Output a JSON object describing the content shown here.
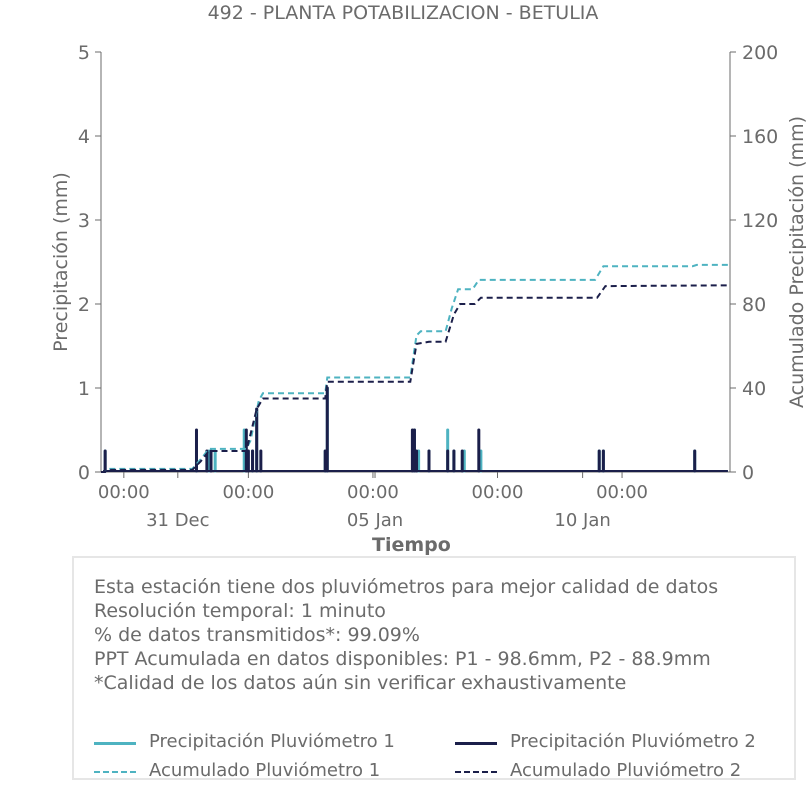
{
  "chart_data": {
    "type": "line",
    "title": "492 - PLANTA POTABILIZACION - BETULIA",
    "xlabel": "Tiempo",
    "ylabel": "Precipitación (mm)",
    "ylabel_right": "Acumulado Precipitación (mm)",
    "ylim": [
      0,
      5
    ],
    "ylim_right": [
      0,
      200
    ],
    "yticks": [
      "0",
      "1",
      "2",
      "3",
      "4",
      "5"
    ],
    "yticks_right": [
      "0",
      "40",
      "80",
      "120",
      "160",
      "200"
    ],
    "xlim_days": [
      -3.55,
      11.6
    ],
    "xticks_major": [
      {
        "day": -3,
        "label": "00:00"
      },
      {
        "day": 0,
        "label": "00:00"
      },
      {
        "day": 3,
        "label": "00:00"
      },
      {
        "day": 6,
        "label": "00:00"
      },
      {
        "day": 9,
        "label": "00:00"
      }
    ],
    "xticks_date": [
      {
        "day": -1.7,
        "label": "31 Dec"
      },
      {
        "day": 3.05,
        "label": "05 Jan"
      },
      {
        "day": 8.05,
        "label": "10 Jan"
      }
    ],
    "grid": false,
    "series": [
      {
        "name": "Precipitación Pluviómetro 1",
        "color": "#4eb3c1",
        "style": "solid",
        "axis": "left",
        "bars": [
          {
            "day": -3.45,
            "value": 0.25
          },
          {
            "day": -1.25,
            "value": 0.25
          },
          {
            "day": -0.95,
            "value": 0.25
          },
          {
            "day": -0.8,
            "value": 0.25
          },
          {
            "day": -0.1,
            "value": 0.5
          },
          {
            "day": 0.1,
            "value": 0.25
          },
          {
            "day": 0.2,
            "value": 0.75
          },
          {
            "day": 1.85,
            "value": 0.25
          },
          {
            "day": 1.9,
            "value": 1.0
          },
          {
            "day": 4.0,
            "value": 0.5
          },
          {
            "day": 4.1,
            "value": 0.25
          },
          {
            "day": 4.35,
            "value": 0.25
          },
          {
            "day": 4.8,
            "value": 0.5
          },
          {
            "day": 4.95,
            "value": 0.25
          },
          {
            "day": 5.2,
            "value": 0.25
          },
          {
            "day": 5.6,
            "value": 0.25
          },
          {
            "day": 8.45,
            "value": 0.25
          },
          {
            "day": 8.55,
            "value": 0.25
          },
          {
            "day": 10.75,
            "value": 0.25
          }
        ]
      },
      {
        "name": "Precipitación Pluviómetro 2",
        "color": "#1b1f4a",
        "style": "solid",
        "axis": "left",
        "bars": [
          {
            "day": -3.45,
            "value": 0.25
          },
          {
            "day": -1.25,
            "value": 0.5
          },
          {
            "day": -1.0,
            "value": 0.25
          },
          {
            "day": -0.9,
            "value": 0.25
          },
          {
            "day": -0.05,
            "value": 0.5
          },
          {
            "day": 0.0,
            "value": 0.25
          },
          {
            "day": 0.1,
            "value": 0.25
          },
          {
            "day": 0.2,
            "value": 0.75
          },
          {
            "day": 0.3,
            "value": 0.25
          },
          {
            "day": 1.85,
            "value": 0.25
          },
          {
            "day": 1.9,
            "value": 1.0
          },
          {
            "day": 3.95,
            "value": 0.5
          },
          {
            "day": 4.0,
            "value": 0.5
          },
          {
            "day": 4.05,
            "value": 0.25
          },
          {
            "day": 4.35,
            "value": 0.25
          },
          {
            "day": 4.8,
            "value": 0.25
          },
          {
            "day": 4.95,
            "value": 0.25
          },
          {
            "day": 5.15,
            "value": 0.25
          },
          {
            "day": 5.55,
            "value": 0.5
          },
          {
            "day": 8.45,
            "value": 0.25
          },
          {
            "day": 8.55,
            "value": 0.25
          },
          {
            "day": 10.75,
            "value": 0.25
          }
        ]
      },
      {
        "name": "Acumulado Pluviómetro 1",
        "color": "#4eb3c1",
        "style": "dashed",
        "axis": "right",
        "points": [
          [
            -3.55,
            0
          ],
          [
            -3.45,
            0
          ],
          [
            -3.4,
            1.5
          ],
          [
            -1.35,
            1.5
          ],
          [
            -1.15,
            6
          ],
          [
            -0.95,
            11
          ],
          [
            -0.05,
            11
          ],
          [
            0.05,
            15
          ],
          [
            0.25,
            34
          ],
          [
            0.35,
            37.5
          ],
          [
            1.85,
            37.5
          ],
          [
            1.9,
            45
          ],
          [
            3.9,
            45
          ],
          [
            4.05,
            65
          ],
          [
            4.15,
            67
          ],
          [
            4.75,
            67
          ],
          [
            4.9,
            78
          ],
          [
            5.05,
            87
          ],
          [
            5.4,
            87
          ],
          [
            5.55,
            91.5
          ],
          [
            8.35,
            91.5
          ],
          [
            8.55,
            98
          ],
          [
            10.7,
            98
          ],
          [
            10.8,
            98.6
          ],
          [
            11.6,
            98.6
          ]
        ]
      },
      {
        "name": "Acumulado Pluviómetro 2",
        "color": "#1b1f4a",
        "style": "dashed",
        "axis": "right",
        "points": [
          [
            -3.55,
            0
          ],
          [
            -3.45,
            0
          ],
          [
            -3.4,
            1
          ],
          [
            -1.35,
            1
          ],
          [
            -1.15,
            5
          ],
          [
            -0.95,
            10
          ],
          [
            -0.05,
            10
          ],
          [
            0.05,
            18
          ],
          [
            0.2,
            30
          ],
          [
            0.35,
            35
          ],
          [
            1.85,
            35
          ],
          [
            1.9,
            43
          ],
          [
            3.9,
            43
          ],
          [
            4.05,
            61
          ],
          [
            4.35,
            62
          ],
          [
            4.75,
            62
          ],
          [
            4.95,
            75
          ],
          [
            5.1,
            80
          ],
          [
            5.45,
            80
          ],
          [
            5.6,
            83
          ],
          [
            8.4,
            83
          ],
          [
            8.6,
            88.5
          ],
          [
            11.6,
            88.9
          ]
        ]
      }
    ]
  },
  "info": {
    "lines": [
      "Esta estación tiene dos pluviómetros para mejor calidad de datos",
      "Resolución temporal: 1 minuto",
      "% de datos transmitidos*: 99.09%",
      "PPT Acumulada en datos disponibles: P1 - 98.6mm, P2 - 88.9mm",
      "*Calidad de los datos aún sin verificar exhaustivamente"
    ]
  },
  "legend": [
    {
      "label": "Precipitación Pluviómetro 1",
      "color": "#4eb3c1",
      "style": "solid"
    },
    {
      "label": "Precipitación Pluviómetro 2",
      "color": "#1b1f4a",
      "style": "solid"
    },
    {
      "label": "Acumulado Pluviómetro 1",
      "color": "#4eb3c1",
      "style": "dashed"
    },
    {
      "label": "Acumulado Pluviómetro 2",
      "color": "#1b1f4a",
      "style": "dashed"
    }
  ]
}
